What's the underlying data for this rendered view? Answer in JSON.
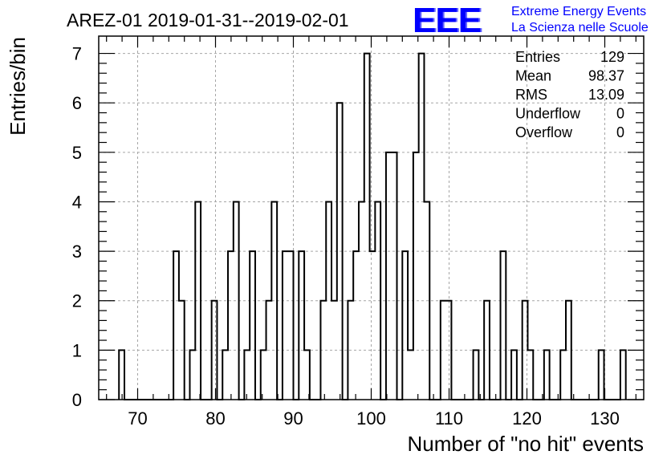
{
  "chart_data": {
    "type": "bar",
    "title": "AREZ-01 2019-01-31--2019-02-01",
    "xlabel": "Number of \"no hit\" events",
    "ylabel": "Entries/bin",
    "xlim": [
      65,
      135
    ],
    "ylim": [
      0,
      7.35
    ],
    "x_ticks": [
      70,
      80,
      90,
      100,
      110,
      120,
      130
    ],
    "y_ticks": [
      0,
      1,
      2,
      3,
      4,
      5,
      6,
      7
    ],
    "bin_width": 0.7,
    "bins_start": [
      67.6,
      68.3,
      69.0,
      69.7,
      70.4,
      71.1,
      71.8,
      72.5,
      73.2,
      73.9,
      74.6,
      75.3,
      76.0,
      76.7,
      77.4,
      78.1,
      78.8,
      79.5,
      80.2,
      80.9,
      81.6,
      82.3,
      83.0,
      83.7,
      84.4,
      85.1,
      85.8,
      86.5,
      87.2,
      87.9,
      88.6,
      89.3,
      90.0,
      90.7,
      91.4,
      92.1,
      92.8,
      93.5,
      94.2,
      94.9,
      95.6,
      96.3,
      97.0,
      97.7,
      98.4,
      99.1,
      99.8,
      100.5,
      101.2,
      101.9,
      102.6,
      103.3,
      104.0,
      104.7,
      105.4,
      106.1,
      106.8,
      107.5,
      108.2,
      108.9,
      109.6,
      110.3,
      111.0,
      111.7,
      112.4,
      113.1,
      113.8,
      114.5,
      115.2,
      115.9,
      116.6,
      117.3,
      118.0,
      118.7,
      119.4,
      120.1,
      120.8,
      121.5,
      122.2,
      122.9,
      123.6,
      124.3,
      125.0,
      125.7,
      126.4,
      127.1,
      127.8,
      128.5,
      129.2,
      129.9,
      130.6,
      131.3,
      132.0
    ],
    "values": [
      1,
      0,
      0,
      0,
      0,
      0,
      0,
      0,
      0,
      0,
      3,
      2,
      0,
      1,
      4,
      0,
      0,
      2,
      0,
      1,
      3,
      4,
      0,
      1,
      3,
      0,
      1,
      2,
      4,
      0,
      3,
      3,
      0,
      3,
      1,
      0,
      0,
      2,
      4,
      2,
      6,
      0,
      2,
      3,
      4,
      7,
      3,
      4,
      0,
      5,
      5,
      0,
      3,
      1,
      5,
      7,
      4,
      0,
      0,
      2,
      2,
      0,
      0,
      0,
      0,
      1,
      0,
      2,
      0,
      0,
      3,
      0,
      1,
      0,
      2,
      1,
      0,
      0,
      1,
      0,
      0,
      1,
      2,
      0,
      0,
      0,
      0,
      0,
      1,
      0,
      0,
      0,
      1
    ],
    "grid": true,
    "legend": "none"
  },
  "stats": {
    "rows": [
      {
        "label": "Entries",
        "value": "129"
      },
      {
        "label": "Mean",
        "value": "98.37"
      },
      {
        "label": "RMS",
        "value": "13.09"
      },
      {
        "label": "Underflow",
        "value": "0"
      },
      {
        "label": "Overflow",
        "value": "0"
      }
    ]
  },
  "logo": {
    "mark": "EEE",
    "line1": "Extreme Energy Events",
    "line2": "La Scienza nelle Scuole",
    "color": "#0000ff"
  }
}
